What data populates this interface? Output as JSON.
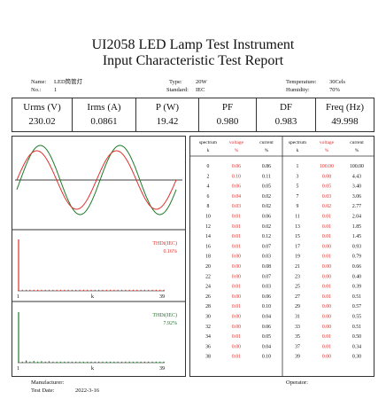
{
  "report": {
    "title_line1": "UI2058 LED Lamp Test Instrument",
    "title_line2": "Input Characteristic Test Report"
  },
  "info": {
    "name_label": "Name:",
    "name_value": "LED筒管灯",
    "no_label": "No.:",
    "no_value": "1",
    "type_label": "Type:",
    "type_value": "20W",
    "standard_label": "Standard:",
    "standard_value": "IEC",
    "temperature_label": "Temperature:",
    "temperature_value": "30Cels",
    "humidity_label": "Humidity:",
    "humidity_value": "70%"
  },
  "measurements": [
    {
      "label": "Urms (V)",
      "value": "230.02"
    },
    {
      "label": "Irms (A)",
      "value": "0.0861"
    },
    {
      "label": "P (W)",
      "value": "19.42"
    },
    {
      "label": "PF",
      "value": "0.980"
    },
    {
      "label": "DF",
      "value": "0.983"
    },
    {
      "label": "Freq (Hz)",
      "value": "49.998"
    }
  ],
  "thd_current": {
    "label": "THDi(IEC)",
    "value": "0.16%"
  },
  "thd_voltage": {
    "label": "THDi(IEC)",
    "value": "7.92%"
  },
  "axis": {
    "start": "1",
    "mid": "k",
    "end": "39"
  },
  "table": {
    "headers": [
      {
        "l1": "spectrum",
        "l2": "k"
      },
      {
        "l1": "voltage",
        "l2": "%"
      },
      {
        "l1": "current",
        "l2": "%"
      },
      {
        "l1": "spectrum",
        "l2": "k"
      },
      {
        "l1": "voltage",
        "l2": "%"
      },
      {
        "l1": "current",
        "l2": "%"
      }
    ],
    "rows": [
      [
        "0",
        "0.06",
        "0.86",
        "1",
        "100.00",
        "100.00"
      ],
      [
        "2",
        "0.10",
        "0.11",
        "3",
        "0.08",
        "4.43"
      ],
      [
        "4",
        "0.06",
        "0.05",
        "5",
        "0.05",
        "3.40"
      ],
      [
        "6",
        "0.04",
        "0.02",
        "7",
        "0.03",
        "3.06"
      ],
      [
        "8",
        "0.03",
        "0.02",
        "9",
        "0.02",
        "2.77"
      ],
      [
        "10",
        "0.01",
        "0.06",
        "11",
        "0.01",
        "2.04"
      ],
      [
        "12",
        "0.01",
        "0.02",
        "13",
        "0.01",
        "1.85"
      ],
      [
        "14",
        "0.01",
        "0.12",
        "15",
        "0.01",
        "1.45"
      ],
      [
        "16",
        "0.01",
        "0.07",
        "17",
        "0.00",
        "0.93"
      ],
      [
        "18",
        "0.00",
        "0.03",
        "19",
        "0.01",
        "0.79"
      ],
      [
        "20",
        "0.00",
        "0.08",
        "21",
        "0.00",
        "0.66"
      ],
      [
        "22",
        "0.00",
        "0.07",
        "23",
        "0.00",
        "0.40"
      ],
      [
        "24",
        "0.01",
        "0.03",
        "25",
        "0.01",
        "0.39"
      ],
      [
        "26",
        "0.00",
        "0.06",
        "27",
        "0.01",
        "0.51"
      ],
      [
        "28",
        "0.01",
        "0.10",
        "29",
        "0.00",
        "0.57"
      ],
      [
        "30",
        "0.00",
        "0.04",
        "31",
        "0.00",
        "0.55"
      ],
      [
        "32",
        "0.00",
        "0.06",
        "33",
        "0.00",
        "0.51"
      ],
      [
        "34",
        "0.01",
        "0.05",
        "35",
        "0.01",
        "0.50"
      ],
      [
        "36",
        "0.00",
        "0.04",
        "37",
        "0.01",
        "0.34"
      ],
      [
        "38",
        "0.01",
        "0.10",
        "39",
        "0.00",
        "0.30"
      ]
    ]
  },
  "footer": {
    "manufacturer_label": "Manufacturer:",
    "operator_label": "Operator:",
    "test_date_label": "Test Date:",
    "test_date_value": "2022-3-16"
  },
  "colors": {
    "voltage": "#e0302c",
    "current": "#1e7a2a"
  },
  "chart_data": [
    {
      "type": "line",
      "series": [
        {
          "values_shape": "sine"
        },
        {
          "values_shape": "sine"
        }
      ]
    },
    {
      "type": "bar",
      "x": [
        1,
        2,
        3,
        4,
        5,
        6,
        7,
        8,
        9,
        10,
        11,
        12,
        13,
        14,
        15,
        16,
        17,
        18,
        19,
        20,
        21,
        22,
        23,
        24,
        25,
        26,
        27,
        28,
        29,
        30,
        31,
        32,
        33,
        34,
        35,
        36,
        37,
        38,
        39
      ],
      "values": [
        100.0,
        0.1,
        0.08,
        0.06,
        0.05,
        0.04,
        0.03,
        0.03,
        0.02,
        0.01,
        0.01,
        0.01,
        0.01,
        0.01,
        0.01,
        0.01,
        0.0,
        0.0,
        0.01,
        0.0,
        0.0,
        0.0,
        0.0,
        0.01,
        0.01,
        0.0,
        0.01,
        0.01,
        0.0,
        0.0,
        0.0,
        0.0,
        0.0,
        0.01,
        0.01,
        0.0,
        0.01,
        0.01,
        0.0
      ]
    },
    {
      "type": "bar",
      "x": [
        1,
        2,
        3,
        4,
        5,
        6,
        7,
        8,
        9,
        10,
        11,
        12,
        13,
        14,
        15,
        16,
        17,
        18,
        19,
        20,
        21,
        22,
        23,
        24,
        25,
        26,
        27,
        28,
        29,
        30,
        31,
        32,
        33,
        34,
        35,
        36,
        37,
        38,
        39
      ],
      "values": [
        100.0,
        0.11,
        4.43,
        0.05,
        3.4,
        0.02,
        3.06,
        0.02,
        2.77,
        0.06,
        2.04,
        0.02,
        1.85,
        0.12,
        1.45,
        0.07,
        0.93,
        0.03,
        0.79,
        0.08,
        0.66,
        0.07,
        0.4,
        0.03,
        0.39,
        0.06,
        0.51,
        0.1,
        0.57,
        0.04,
        0.55,
        0.06,
        0.51,
        0.05,
        0.5,
        0.04,
        0.34,
        0.1,
        0.3
      ]
    }
  ]
}
